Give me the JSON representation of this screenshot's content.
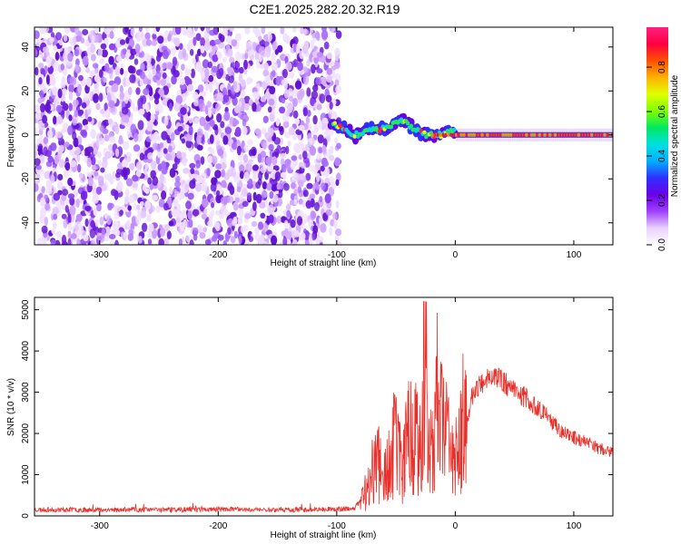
{
  "title": "C2E1.2025.282.20.32.R19",
  "chart_data": [
    {
      "type": "heatmap",
      "title": "C2E1.2025.282.20.32.R19",
      "xlabel": "Height of straight line (km)",
      "ylabel": "Frequency (Hz)",
      "xlim": [
        -355,
        133
      ],
      "ylim": [
        -50,
        49
      ],
      "x_ticks": [
        -300,
        -200,
        -100,
        0,
        100
      ],
      "y_ticks": [
        -40,
        -20,
        0,
        20,
        40
      ],
      "noise_region": {
        "x_range": [
          -355,
          -95
        ],
        "y_range": [
          -50,
          49
        ]
      },
      "signal_track": {
        "x": [
          -105,
          -100,
          -95,
          -90,
          -85,
          -80,
          -75,
          -70,
          -65,
          -60,
          -55,
          -50,
          -45,
          -40,
          -35,
          -30,
          -25,
          -20,
          -10,
          0,
          10,
          20,
          40,
          60,
          80,
          100,
          133
        ],
        "y": [
          5,
          4,
          3,
          2,
          0,
          0,
          3,
          3,
          2,
          3,
          4,
          6,
          6,
          5,
          3,
          1,
          0,
          0,
          0,
          2,
          1,
          0,
          0,
          0,
          0,
          0,
          0
        ]
      },
      "colorbar": {
        "label": "Normalized spectral amplitude",
        "range": [
          0.0,
          0.98
        ],
        "ticks": [
          0.0,
          0.2,
          0.4,
          0.6,
          0.8
        ],
        "tick_labels": [
          "0.0",
          "0.2",
          "0.4",
          "0.6",
          "0.8"
        ],
        "colors": [
          "#ffffff",
          "#e8d0ff",
          "#a040ff",
          "#6a00e8",
          "#3030ff",
          "#00b0ff",
          "#00e0e0",
          "#00e860",
          "#80ff00",
          "#e0ff00",
          "#ffb000",
          "#ff5000",
          "#ff0040",
          "#ff2080"
        ]
      }
    },
    {
      "type": "line",
      "xlabel": "Height of straight line (km)",
      "ylabel": "SNR (10 * v/v)",
      "xlim": [
        -355,
        133
      ],
      "ylim": [
        0,
        5300
      ],
      "x_ticks": [
        -300,
        -200,
        -100,
        0,
        100
      ],
      "y_ticks": [
        0,
        1000,
        2000,
        3000,
        4000,
        5000
      ],
      "color": "#e8302a",
      "series": [
        {
          "x": [
            -355,
            -300,
            -250,
            -200,
            -150,
            -100,
            -85,
            -75,
            -70,
            -65,
            -60,
            -55,
            -50,
            -45,
            -40,
            -35,
            -30,
            -25,
            -20,
            -15,
            -10,
            -5,
            0,
            5,
            10,
            15,
            20,
            25,
            30,
            40,
            50,
            60,
            70,
            80,
            90,
            100,
            110,
            120,
            133
          ],
          "values": [
            150,
            150,
            150,
            160,
            150,
            160,
            180,
            600,
            1100,
            1300,
            800,
            1600,
            1700,
            1100,
            1900,
            2300,
            1500,
            2600,
            1300,
            2800,
            1900,
            1800,
            1200,
            2400,
            2300,
            3000,
            3150,
            3350,
            3400,
            3250,
            3050,
            2850,
            2600,
            2350,
            2050,
            1900,
            1800,
            1650,
            1550
          ]
        }
      ]
    }
  ]
}
